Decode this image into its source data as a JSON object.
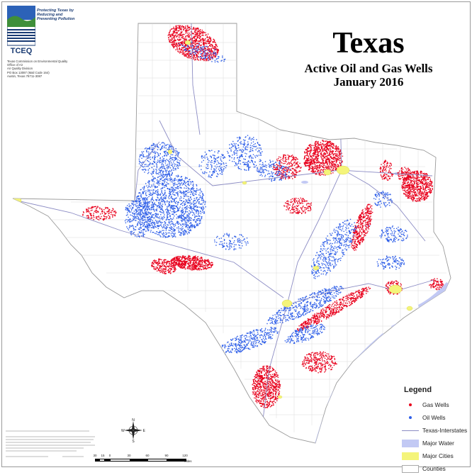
{
  "header": {
    "title": "Texas",
    "subtitle": "Active Oil and Gas Wells",
    "date": "January 2016"
  },
  "logo": {
    "name": "TCEQ",
    "tagline": [
      "Protecting Texas by",
      "Reducing and",
      "Preventing Pollution"
    ]
  },
  "agency": {
    "lines": [
      "Texas Commission on Environmental Quality",
      "Office of Air",
      "Air Quality Division",
      "PO Box 13087 (Mail Code 164)",
      "Austin, Texas 78711-3087"
    ]
  },
  "legend": {
    "title": "Legend",
    "items": [
      {
        "label": "Gas Wells",
        "type": "dot",
        "color": "#e8001c"
      },
      {
        "label": "Oil Wells",
        "type": "dot",
        "color": "#2f5fe8"
      },
      {
        "label": "Texas-Interstates",
        "type": "line",
        "color": "#8c8cc4"
      },
      {
        "label": "Major Water",
        "type": "swatch",
        "color": "#c2c9f4"
      },
      {
        "label": "Major Cities",
        "type": "swatch",
        "color": "#f4f47a"
      },
      {
        "label": "Counties",
        "type": "swatch",
        "color": "#ffffff"
      }
    ]
  },
  "scale": {
    "ticks": [
      "30",
      "15",
      "0",
      "30",
      "60",
      "90",
      "120"
    ],
    "units": "Miles"
  },
  "compass": {
    "n": "N",
    "s": "S",
    "e": "E",
    "w": "W"
  },
  "colors": {
    "gas": "#e8001c",
    "oil": "#2f5fe8",
    "water": "#c2c9f4",
    "cities": "#f4f47a",
    "interstate": "#8c8cc4",
    "county_lines": "#cccccc",
    "state_outline": "#9a9a9a"
  }
}
